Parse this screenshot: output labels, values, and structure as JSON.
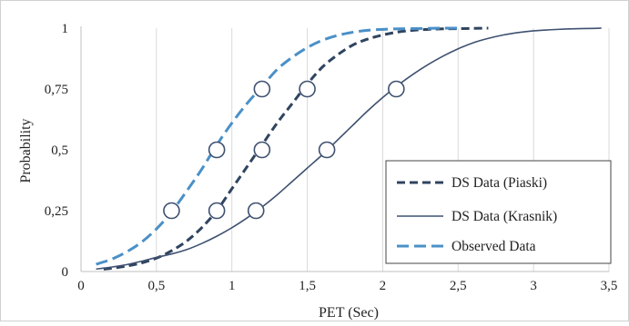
{
  "chart_data": {
    "type": "line",
    "xlabel": "PET (Sec)",
    "ylabel": "Probability",
    "xlim": [
      0,
      3.5
    ],
    "ylim": [
      0,
      1
    ],
    "x_ticks": [
      "0",
      "0,5",
      "1",
      "1,5",
      "2",
      "2,5",
      "3",
      "3,5"
    ],
    "y_ticks": [
      "0",
      "0,25",
      "0,5",
      "0,75",
      "1"
    ],
    "grid": "vertical",
    "legend_position": "bottom-right",
    "series": [
      {
        "name": "DS Data (Piaski)",
        "style": "dashed",
        "color": "#2f4460",
        "x": [
          0.15,
          0.2,
          0.3,
          0.4,
          0.5,
          0.6,
          0.7,
          0.8,
          0.9,
          1.0,
          1.1,
          1.2,
          1.3,
          1.4,
          1.5,
          1.6,
          1.7,
          1.8,
          1.9,
          2.0,
          2.1,
          2.2,
          2.3,
          2.4,
          2.5,
          2.6,
          2.7
        ],
        "y": [
          0.01,
          0.013,
          0.022,
          0.035,
          0.055,
          0.085,
          0.125,
          0.18,
          0.25,
          0.34,
          0.43,
          0.52,
          0.61,
          0.69,
          0.77,
          0.84,
          0.89,
          0.93,
          0.955,
          0.972,
          0.984,
          0.991,
          0.995,
          0.997,
          0.998,
          0.999,
          1.0
        ]
      },
      {
        "name": "DS Data (Krasnik)",
        "style": "solid",
        "color": "#3e5170",
        "x": [
          0.1,
          0.2,
          0.3,
          0.4,
          0.5,
          0.6,
          0.7,
          0.8,
          0.9,
          1.0,
          1.1,
          1.2,
          1.3,
          1.4,
          1.5,
          1.6,
          1.7,
          1.8,
          1.9,
          2.0,
          2.1,
          2.2,
          2.3,
          2.4,
          2.5,
          2.6,
          2.7,
          2.8,
          2.9,
          3.0,
          3.1,
          3.2,
          3.3,
          3.4,
          3.45
        ],
        "y": [
          0.01,
          0.018,
          0.028,
          0.042,
          0.058,
          0.072,
          0.09,
          0.115,
          0.145,
          0.18,
          0.22,
          0.265,
          0.315,
          0.37,
          0.425,
          0.48,
          0.54,
          0.6,
          0.66,
          0.715,
          0.765,
          0.81,
          0.85,
          0.885,
          0.915,
          0.94,
          0.958,
          0.972,
          0.982,
          0.989,
          0.993,
          0.996,
          0.998,
          0.999,
          1.0
        ]
      },
      {
        "name": "Observed Data",
        "style": "dashed",
        "color": "#4a90c8",
        "x": [
          0.1,
          0.2,
          0.3,
          0.4,
          0.5,
          0.6,
          0.7,
          0.8,
          0.9,
          1.0,
          1.1,
          1.2,
          1.3,
          1.4,
          1.5,
          1.6,
          1.7,
          1.8,
          1.9,
          2.0,
          2.1,
          2.2,
          2.3,
          2.4,
          2.5
        ],
        "y": [
          0.03,
          0.05,
          0.08,
          0.12,
          0.175,
          0.245,
          0.33,
          0.42,
          0.52,
          0.61,
          0.69,
          0.76,
          0.83,
          0.88,
          0.92,
          0.95,
          0.97,
          0.983,
          0.991,
          0.995,
          0.997,
          0.998,
          0.999,
          1.0,
          1.0
        ]
      }
    ],
    "markers": [
      {
        "x": 0.6,
        "y": 0.25
      },
      {
        "x": 0.9,
        "y": 0.25
      },
      {
        "x": 1.16,
        "y": 0.25
      },
      {
        "x": 0.9,
        "y": 0.5
      },
      {
        "x": 1.2,
        "y": 0.5
      },
      {
        "x": 1.63,
        "y": 0.5
      },
      {
        "x": 1.2,
        "y": 0.75
      },
      {
        "x": 1.5,
        "y": 0.75
      },
      {
        "x": 2.09,
        "y": 0.75
      }
    ]
  }
}
